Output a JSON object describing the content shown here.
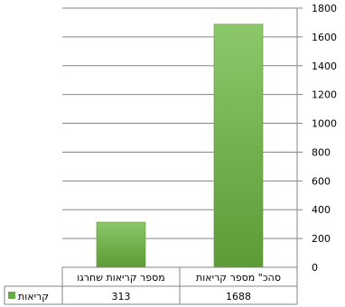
{
  "chart_data": {
    "type": "bar",
    "categories": [
      "סהכ\" מספר קריאות",
      "מספר קריאות שחרגו"
    ],
    "series": [
      {
        "name": "קריאות",
        "values": [
          1688,
          313
        ],
        "color": "#6aac46"
      }
    ],
    "ylim": [
      0,
      1800
    ],
    "yticks": [
      0,
      200,
      400,
      600,
      800,
      1000,
      1200,
      1400,
      1600,
      1800
    ],
    "axis_side": "right",
    "grid": true,
    "data_table": true,
    "legend_placement": "table-left",
    "title": "",
    "xlabel": "",
    "ylabel": ""
  }
}
